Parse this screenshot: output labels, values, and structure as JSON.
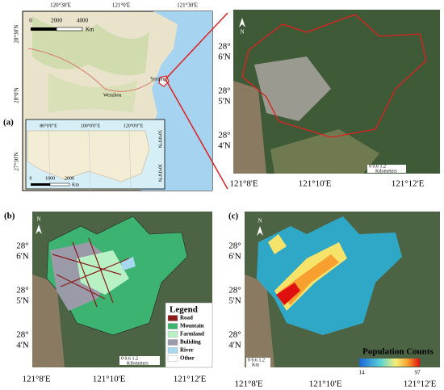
{
  "panel_a": {
    "label": "(a)",
    "top_ticks": [
      "120°30'E",
      "121°0'E",
      "121°30'E"
    ],
    "left_ticks": [
      "28°30'N",
      "28°0'N",
      "27°30'N"
    ],
    "scale": [
      "0",
      "2000",
      "4000"
    ],
    "scale_unit": "Km",
    "cities": [
      "Wenzhou",
      "Yueqing"
    ],
    "inset": {
      "top_ticks": [
        "80°0'0\"E",
        "100°0'0\"E",
        "120°0'0\"E"
      ],
      "right_ticks": [
        "50°0'0\"N",
        "30°0'0\"N"
      ],
      "scale": [
        "0",
        "1000",
        "2000"
      ],
      "scale_unit": "Km"
    }
  },
  "panel_a_detail": {
    "north": "N",
    "lat_ticks": [
      {
        "deg": "28°",
        "min": "6'N"
      },
      {
        "deg": "28°",
        "min": "5'N"
      },
      {
        "deg": "28°",
        "min": "4'N"
      }
    ],
    "lon_ticks": [
      "121°8'E",
      "121°10'E",
      "121°12'E"
    ],
    "scale": "0   0.6  1.2",
    "scale_unit": "Kilometers"
  },
  "panel_b": {
    "label": "(b)",
    "north": "N",
    "lat_ticks": [
      {
        "deg": "28°",
        "min": "6'N"
      },
      {
        "deg": "28°",
        "min": "5'N"
      },
      {
        "deg": "28°",
        "min": "4'N"
      }
    ],
    "lon_ticks": [
      "121°8'E",
      "121°10'E",
      "121°12'E"
    ],
    "scale": "0   0.6  1.2",
    "scale_unit": "Kilometers",
    "legend": {
      "title": "Legend",
      "items": [
        {
          "name": "Road",
          "color": "#8b1a1a"
        },
        {
          "name": "Mountain",
          "color": "#3cb371"
        },
        {
          "name": "Farmland",
          "color": "#b8f2c4"
        },
        {
          "name": "Buliding",
          "color": "#9a9aa8"
        },
        {
          "name": "River",
          "color": "#a8d8f0"
        },
        {
          "name": "Other",
          "color": "#ffffff"
        }
      ]
    }
  },
  "panel_c": {
    "label": "(c)",
    "north": "N",
    "lat_ticks": [
      {
        "deg": "28°",
        "min": "6'N"
      },
      {
        "deg": "28°",
        "min": "5'N"
      },
      {
        "deg": "28°",
        "min": "4'N"
      }
    ],
    "lon_ticks": [
      "121°8'E",
      "121°10'E",
      "121°12'E"
    ],
    "scale": "0 0.6 1.2",
    "scale_unit": "Km",
    "legend_title": "Population Counts",
    "legend_min": "14",
    "legend_max": "97"
  }
}
